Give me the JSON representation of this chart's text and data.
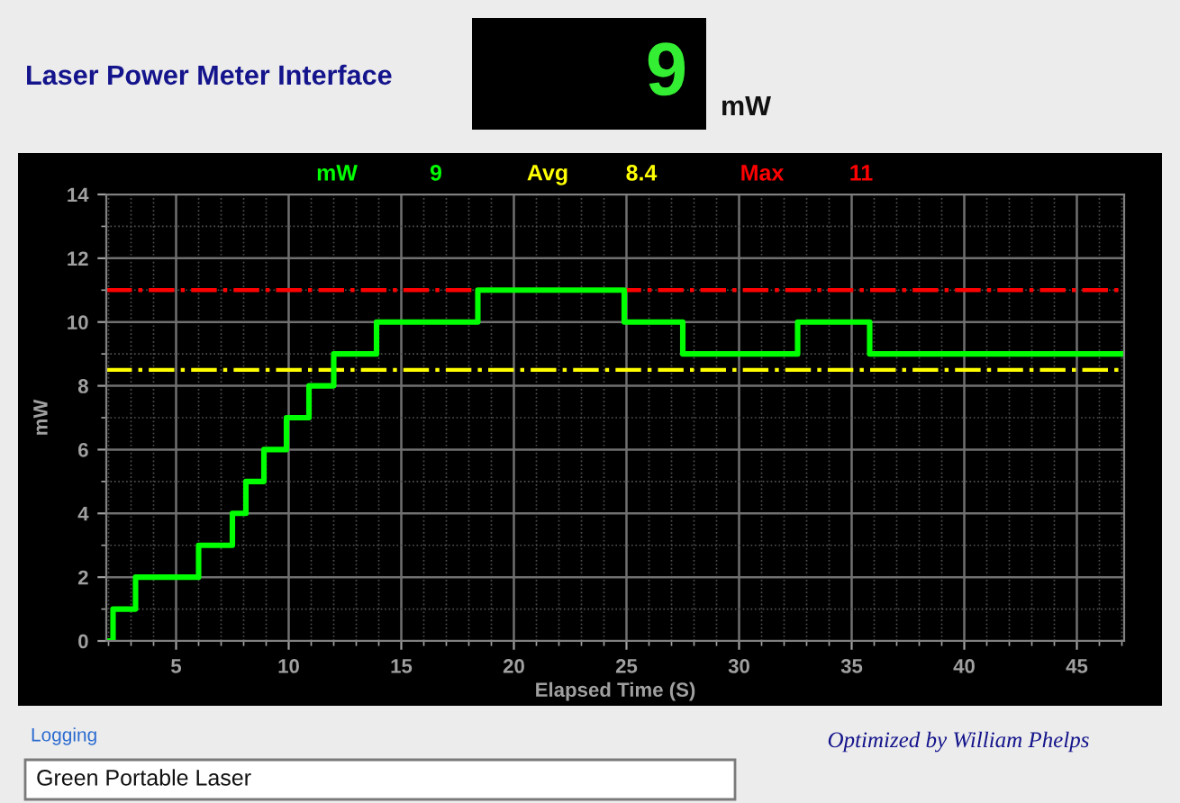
{
  "chart_data": {
    "type": "step",
    "title": "Laser Power Meter Interface",
    "xlabel": "Elapsed Time (S)",
    "ylabel": "mW",
    "series": [
      {
        "color": "#00ff00",
        "x": [
          2.0,
          2.2,
          3.2,
          6.0,
          7.5,
          8.1,
          8.9,
          9.9,
          10.9,
          12.0,
          13.9,
          18.4,
          24.9,
          27.5,
          32.6,
          35.8,
          47.1
        ],
        "values": [
          0,
          1,
          2,
          3,
          4,
          5,
          6,
          7,
          8,
          9,
          10,
          11,
          10,
          9,
          10,
          9,
          9
        ]
      }
    ],
    "xlim": [
      1.9,
      47.1
    ],
    "xticks": [
      5,
      10,
      15,
      20,
      25,
      30,
      35,
      40,
      45
    ],
    "ylim": [
      0,
      14
    ],
    "yticks": [
      0,
      2,
      4,
      6,
      8,
      10,
      12,
      14
    ],
    "grid": true,
    "line_style": "solid",
    "marker": "none",
    "ref_lines": [
      {
        "axis": "y",
        "value": 11,
        "label": null,
        "color": "#ff0000",
        "line_style": "dashdot"
      },
      {
        "axis": "y",
        "value": 8.5,
        "label": null,
        "color": "#ffff00",
        "line_style": "dashdot"
      }
    ],
    "annotations": [
      "9",
      "mW",
      "mW",
      "9",
      "Avg",
      "8.4",
      "Max",
      "11",
      "Logging",
      "Green Portable Laser",
      "Optimized by William Phelps"
    ]
  }
}
